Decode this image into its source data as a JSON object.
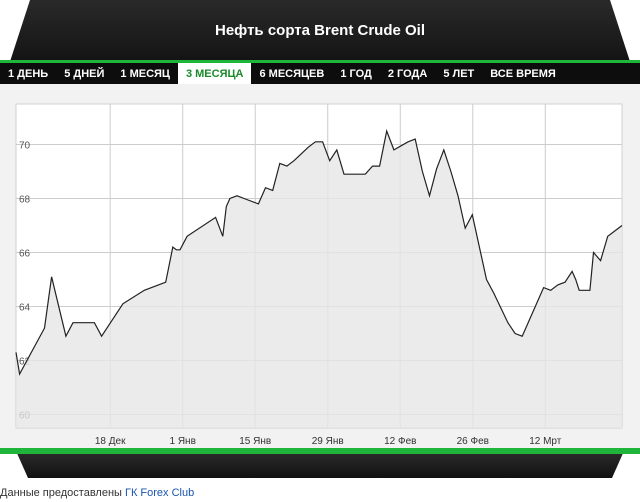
{
  "header": {
    "title": "Нефть сорта Brent Crude Oil"
  },
  "tabs": [
    {
      "label": "1 ДЕНЬ",
      "active": false
    },
    {
      "label": "5 ДНЕЙ",
      "active": false
    },
    {
      "label": "1 МЕСЯЦ",
      "active": false
    },
    {
      "label": "3 МЕСЯЦА",
      "active": true
    },
    {
      "label": "6 МЕСЯЦЕВ",
      "active": false
    },
    {
      "label": "1 ГОД",
      "active": false
    },
    {
      "label": "2 ГОДА",
      "active": false
    },
    {
      "label": "5 ЛЕТ",
      "active": false
    },
    {
      "label": "ВСЕ ВРЕМЯ",
      "active": false
    }
  ],
  "colors": {
    "accent": "#1eb53a",
    "header_bg": "#1a1a1a",
    "line": "#222222",
    "area": "#e6e6e6",
    "grid": "#cccccc"
  },
  "chart_data": {
    "type": "area",
    "title": "",
    "xlabel": "",
    "ylabel": "",
    "ylim": [
      59.5,
      71.5
    ],
    "grid": true,
    "y_ticks": [
      60,
      62,
      64,
      66,
      68,
      70
    ],
    "x_ticks": [
      "18 Дек",
      "1 Янв",
      "15 Янв",
      "29 Янв",
      "12 Фев",
      "26 Фев",
      "12 Мрт"
    ],
    "x": [
      0,
      0.5,
      4,
      5,
      7,
      8,
      11,
      12,
      15,
      18,
      21,
      22,
      22.5,
      23,
      24,
      28,
      29,
      29.5,
      30,
      31,
      32,
      34,
      35,
      36,
      37,
      38,
      39,
      41,
      42,
      43,
      44,
      45,
      46,
      47,
      49,
      50,
      51,
      52,
      53,
      55,
      56,
      57,
      58,
      59,
      60,
      61,
      62,
      63,
      64,
      66,
      67,
      69,
      70,
      71,
      74,
      75,
      76,
      77,
      78,
      78.5,
      79,
      80,
      80.5,
      81,
      82,
      83,
      83.5,
      84,
      85
    ],
    "y": [
      62.3,
      61.5,
      63.2,
      65.1,
      62.9,
      63.4,
      63.4,
      62.9,
      64.1,
      64.6,
      64.9,
      66.2,
      66.1,
      66.1,
      66.6,
      67.3,
      66.6,
      67.7,
      68.0,
      68.1,
      68.0,
      67.8,
      68.4,
      68.3,
      69.3,
      69.2,
      69.4,
      69.9,
      70.1,
      70.1,
      69.4,
      69.8,
      68.9,
      68.9,
      68.9,
      69.2,
      69.2,
      70.5,
      69.8,
      70.1,
      70.2,
      69.0,
      68.1,
      69.1,
      69.8,
      69.0,
      68.1,
      66.9,
      67.4,
      65.0,
      64.5,
      63.4,
      63.0,
      62.9,
      64.7,
      64.6,
      64.8,
      64.9,
      65.3,
      65.0,
      64.6,
      64.6,
      64.6,
      66.0,
      65.7,
      66.6,
      66.7,
      66.8,
      67.0
    ]
  },
  "source": {
    "text": "Данные предоставлены ",
    "link": "ГК Forex Club"
  }
}
